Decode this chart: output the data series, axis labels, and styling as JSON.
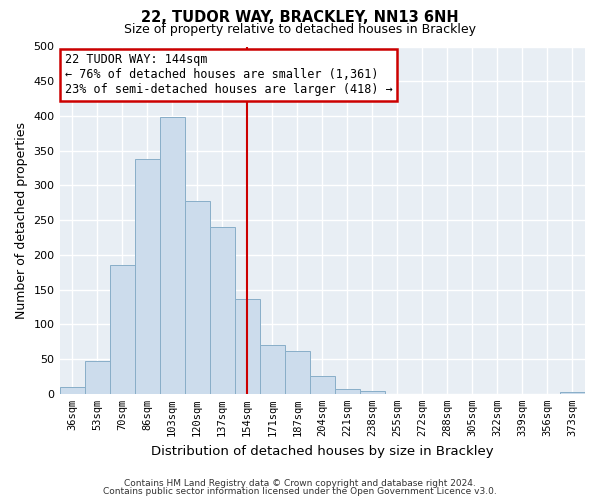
{
  "title": "22, TUDOR WAY, BRACKLEY, NN13 6NH",
  "subtitle": "Size of property relative to detached houses in Brackley",
  "xlabel": "Distribution of detached houses by size in Brackley",
  "ylabel": "Number of detached properties",
  "bar_color": "#ccdcec",
  "bar_edgecolor": "#88aec8",
  "categories": [
    "36sqm",
    "53sqm",
    "70sqm",
    "86sqm",
    "103sqm",
    "120sqm",
    "137sqm",
    "154sqm",
    "171sqm",
    "187sqm",
    "204sqm",
    "221sqm",
    "238sqm",
    "255sqm",
    "272sqm",
    "288sqm",
    "305sqm",
    "322sqm",
    "339sqm",
    "356sqm",
    "373sqm"
  ],
  "values": [
    10,
    47,
    185,
    338,
    398,
    277,
    240,
    137,
    70,
    62,
    26,
    7,
    4,
    0,
    0,
    0,
    0,
    0,
    0,
    0,
    2
  ],
  "ylim": [
    0,
    500
  ],
  "yticks": [
    0,
    50,
    100,
    150,
    200,
    250,
    300,
    350,
    400,
    450,
    500
  ],
  "vline_x": 7.0,
  "vline_color": "#cc0000",
  "annotation_text": "22 TUDOR WAY: 144sqm\n← 76% of detached houses are smaller (1,361)\n23% of semi-detached houses are larger (418) →",
  "annotation_box_color": "#cc0000",
  "footnote1": "Contains HM Land Registry data © Crown copyright and database right 2024.",
  "footnote2": "Contains public sector information licensed under the Open Government Licence v3.0.",
  "background_color": "#ffffff",
  "plot_bg_color": "#e8eef4",
  "grid_color": "#ffffff"
}
